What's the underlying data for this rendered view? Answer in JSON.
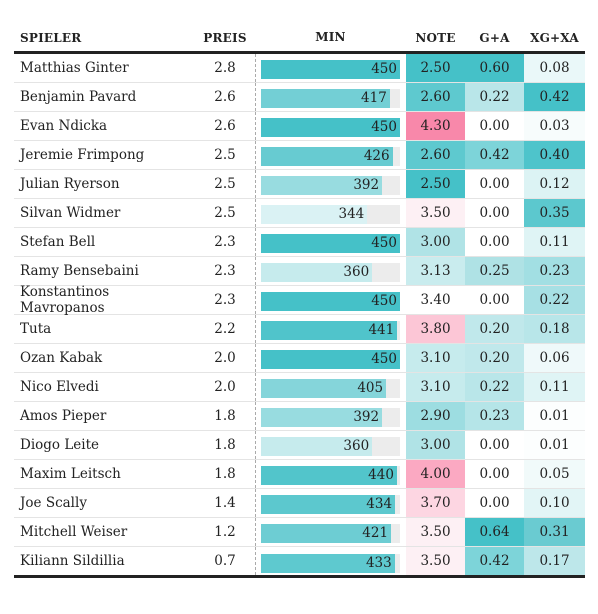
{
  "headers": {
    "name": "SPIELER",
    "price": "PREIS",
    "minutes": "MIN",
    "note": "NOTE",
    "ga": "G+A",
    "xgxa": "XG+XA"
  },
  "minutes_scale_max": 450,
  "rows": [
    {
      "name": "Matthias Ginter",
      "price": "2.8",
      "minutes": 450,
      "minutes_label": "450",
      "note": "2.50",
      "ga": "0.60",
      "xgxa": "0.08",
      "min_color": "#45c1c8",
      "note_color": "#45c1c8",
      "ga_color": "#45c1c8",
      "xgxa_color": "#eaf8f9"
    },
    {
      "name": "Benjamin Pavard",
      "price": "2.6",
      "minutes": 417,
      "minutes_label": "417",
      "note": "2.60",
      "ga": "0.22",
      "xgxa": "0.42",
      "min_color": "#73cfd5",
      "note_color": "#5ec9cf",
      "ga_color": "#b9e6e9",
      "xgxa_color": "#45c1c8"
    },
    {
      "name": "Evan Ndicka",
      "price": "2.6",
      "minutes": 450,
      "minutes_label": "450",
      "note": "4.30",
      "ga": "0.00",
      "xgxa": "0.03",
      "min_color": "#45c1c8",
      "note_color": "#f888aa",
      "ga_color": "#ffffff",
      "xgxa_color": "#f7fcfc"
    },
    {
      "name": "Jeremie Frimpong",
      "price": "2.5",
      "minutes": 426,
      "minutes_label": "426",
      "note": "2.60",
      "ga": "0.42",
      "xgxa": "0.40",
      "min_color": "#67cbd1",
      "note_color": "#5ec9cf",
      "ga_color": "#7dd4d9",
      "xgxa_color": "#4ec4cb"
    },
    {
      "name": "Julian Ryerson",
      "price": "2.5",
      "minutes": 392,
      "minutes_label": "392",
      "note": "2.50",
      "ga": "0.00",
      "xgxa": "0.12",
      "min_color": "#98dce0",
      "note_color": "#45c1c8",
      "ga_color": "#ffffff",
      "xgxa_color": "#dcf3f4"
    },
    {
      "name": "Silvan Widmer",
      "price": "2.5",
      "minutes": 344,
      "minutes_label": "344",
      "note": "3.50",
      "ga": "0.00",
      "xgxa": "0.35",
      "min_color": "#daf2f4",
      "note_color": "#fdf0f4",
      "ga_color": "#ffffff",
      "xgxa_color": "#5cc8ce"
    },
    {
      "name": "Stefan Bell",
      "price": "2.3",
      "minutes": 450,
      "minutes_label": "450",
      "note": "3.00",
      "ga": "0.00",
      "xgxa": "0.11",
      "min_color": "#45c1c8",
      "note_color": "#b0e3e6",
      "ga_color": "#ffffff",
      "xgxa_color": "#dff4f5"
    },
    {
      "name": "Ramy Bensebaini",
      "price": "2.3",
      "minutes": 360,
      "minutes_label": "360",
      "note": "3.13",
      "ga": "0.25",
      "xgxa": "0.23",
      "min_color": "#c6ebed",
      "note_color": "#c9ecee",
      "ga_color": "#afe2e5",
      "xgxa_color": "#a2dfe3"
    },
    {
      "name": "Konstantinos Mavropanos",
      "price": "2.3",
      "minutes": 450,
      "minutes_label": "450",
      "note": "3.40",
      "ga": "0.00",
      "xgxa": "0.22",
      "min_color": "#45c1c8",
      "note_color": "#ffffff",
      "ga_color": "#ffffff",
      "xgxa_color": "#a7e0e4"
    },
    {
      "name": "Tuta",
      "price": "2.2",
      "minutes": 441,
      "minutes_label": "441",
      "note": "3.80",
      "ga": "0.20",
      "xgxa": "0.18",
      "min_color": "#50c4cb",
      "note_color": "#fcc6d6",
      "ga_color": "#c0e8eb",
      "xgxa_color": "#b8e6e9"
    },
    {
      "name": "Ozan Kabak",
      "price": "2.0",
      "minutes": 450,
      "minutes_label": "450",
      "note": "3.10",
      "ga": "0.20",
      "xgxa": "0.06",
      "min_color": "#45c1c8",
      "note_color": "#c6ebed",
      "ga_color": "#c0e8eb",
      "xgxa_color": "#eff9fa"
    },
    {
      "name": "Nico Elvedi",
      "price": "2.0",
      "minutes": 405,
      "minutes_label": "405",
      "note": "3.10",
      "ga": "0.22",
      "xgxa": "0.11",
      "min_color": "#85d5da",
      "note_color": "#c6ebed",
      "ga_color": "#b9e6e9",
      "xgxa_color": "#dff4f5"
    },
    {
      "name": "Amos Pieper",
      "price": "1.8",
      "minutes": 392,
      "minutes_label": "392",
      "note": "2.90",
      "ga": "0.23",
      "xgxa": "0.01",
      "min_color": "#98dce0",
      "note_color": "#9ddde1",
      "ga_color": "#b5e5e8",
      "xgxa_color": "#fcfefe"
    },
    {
      "name": "Diogo Leite",
      "price": "1.8",
      "minutes": 360,
      "minutes_label": "360",
      "note": "3.00",
      "ga": "0.00",
      "xgxa": "0.01",
      "min_color": "#c6ebed",
      "note_color": "#b0e3e6",
      "ga_color": "#ffffff",
      "xgxa_color": "#fcfefe"
    },
    {
      "name": "Maxim Leitsch",
      "price": "1.8",
      "minutes": 440,
      "minutes_label": "440",
      "note": "4.00",
      "ga": "0.00",
      "xgxa": "0.05",
      "min_color": "#52c5cb",
      "note_color": "#fba9c2",
      "ga_color": "#ffffff",
      "xgxa_color": "#f1fafa"
    },
    {
      "name": "Joe Scally",
      "price": "1.4",
      "minutes": 434,
      "minutes_label": "434",
      "note": "3.70",
      "ga": "0.00",
      "xgxa": "0.10",
      "min_color": "#5cc8ce",
      "note_color": "#fdd6e2",
      "ga_color": "#ffffff",
      "xgxa_color": "#e2f5f6"
    },
    {
      "name": "Mitchell Weiser",
      "price": "1.2",
      "minutes": 421,
      "minutes_label": "421",
      "note": "3.50",
      "ga": "0.64",
      "xgxa": "0.31",
      "min_color": "#6dcdd3",
      "note_color": "#fdf0f4",
      "ga_color": "#45c1c8",
      "xgxa_color": "#6acbd1"
    },
    {
      "name": "Kiliann Sildillia",
      "price": "0.7",
      "minutes": 433,
      "minutes_label": "433",
      "note": "3.50",
      "ga": "0.42",
      "xgxa": "0.17",
      "min_color": "#5ec9cf",
      "note_color": "#fdf0f4",
      "ga_color": "#7dd4d9",
      "xgxa_color": "#bde7ea"
    }
  ]
}
